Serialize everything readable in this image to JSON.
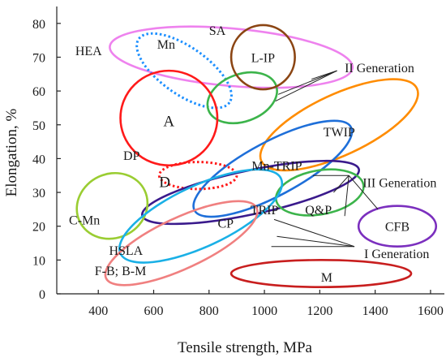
{
  "chart_data": {
    "type": "scatter",
    "title": "",
    "xlabel": "Tensile strength, MPa",
    "ylabel": "Elongation, %",
    "xlim": [
      250,
      1650
    ],
    "ylim": [
      0,
      85
    ],
    "x_ticks": [
      400,
      600,
      800,
      1000,
      1200,
      1400,
      1600
    ],
    "y_ticks": [
      0,
      10,
      20,
      30,
      40,
      50,
      60,
      70,
      80
    ],
    "grid": false,
    "legend": "none",
    "regions": [
      {
        "name": "HEA",
        "label": "HEA",
        "color": "#ee82ee",
        "style": "solid",
        "center": [
          880,
          70
        ],
        "rx": 440,
        "ry": 8.5,
        "rotation": 5,
        "label_pos": [
          365,
          72
        ]
      },
      {
        "name": "Mn",
        "label": "Mn",
        "color": "#1e90ff",
        "style": "dotted",
        "center": [
          710,
          66
        ],
        "rx": 200,
        "ry": 7,
        "rotation": 35,
        "label_pos": [
          645,
          74
        ]
      },
      {
        "name": "SA",
        "label": "SA",
        "color": "#3cb44b",
        "style": "solid",
        "center": [
          920,
          58
        ],
        "rx": 130,
        "ry": 7,
        "rotation": -20,
        "label_pos": [
          830,
          78
        ]
      },
      {
        "name": "L-IP",
        "label": "L-IP",
        "color": "#8b4513",
        "style": "solid",
        "center": [
          995,
          70
        ],
        "rx": 115,
        "ry": 9.5,
        "rotation": 0,
        "label_pos": [
          995,
          70
        ]
      },
      {
        "name": "TWIP",
        "label": "TWIP",
        "color": "#ff8c00",
        "style": "solid",
        "center": [
          1270,
          50
        ],
        "rx": 310,
        "ry": 9,
        "rotation": -25,
        "label_pos": [
          1270,
          48
        ]
      },
      {
        "name": "A",
        "label": "A",
        "color": "#ff1a1a",
        "style": "solid",
        "center": [
          655,
          52
        ],
        "rx": 175,
        "ry": 14,
        "rotation": 0,
        "label_pos": [
          655,
          51
        ]
      },
      {
        "name": "Mn-TRIP",
        "label": "Mn-TRIP",
        "color": "#1e6fd9",
        "style": "solid",
        "center": [
          1030,
          37
        ],
        "rx": 320,
        "ry": 8,
        "rotation": -28,
        "label_pos": [
          1045,
          38
        ]
      },
      {
        "name": "D",
        "label": "D",
        "color": "#ff1a1a",
        "style": "dotted",
        "center": [
          760,
          35
        ],
        "rx": 140,
        "ry": 4,
        "rotation": 0,
        "label_pos": [
          640,
          33
        ]
      },
      {
        "name": "DP",
        "label": "DP",
        "color": "#3a1a8c",
        "style": "solid",
        "center": [
          950,
          30
        ],
        "rx": 400,
        "ry": 6.5,
        "rotation": -12,
        "label_pos": [
          520,
          41
        ]
      },
      {
        "name": "Q&P",
        "label": "Q&P",
        "color": "#3cb44b",
        "style": "solid",
        "center": [
          1200,
          30
        ],
        "rx": 160,
        "ry": 6.5,
        "rotation": -10,
        "label_pos": [
          1195,
          25
        ]
      },
      {
        "name": "CFB",
        "label": "CFB",
        "color": "#7b2fbe",
        "style": "solid",
        "center": [
          1480,
          20
        ],
        "rx": 140,
        "ry": 6,
        "rotation": 0,
        "label_pos": [
          1480,
          20
        ]
      },
      {
        "name": "C-Mn",
        "label": "C-Mn",
        "color": "#9acd32",
        "style": "solid",
        "center": [
          450,
          26
        ],
        "rx": 130,
        "ry": 9.5,
        "rotation": -25,
        "label_pos": [
          350,
          22
        ]
      },
      {
        "name": "CP",
        "label": "CP",
        "color": "#1ab0e6",
        "style": "solid",
        "center": [
          770,
          23
        ],
        "rx": 320,
        "ry": 9,
        "rotation": -25,
        "label_pos": [
          860,
          21
        ]
      },
      {
        "name": "HSLA",
        "label": "HSLA",
        "color": "#f08080",
        "style": "solid",
        "center": [
          700,
          15
        ],
        "rx": 300,
        "ry": 7.5,
        "rotation": -25,
        "label_pos": [
          500,
          13
        ]
      },
      {
        "name": "M",
        "label": "M",
        "color": "#c81e1e",
        "style": "solid",
        "center": [
          1205,
          6
        ],
        "rx": 325,
        "ry": 4,
        "rotation": 0,
        "label_pos": [
          1225,
          5
        ]
      }
    ],
    "extra_labels": [
      {
        "name": "TRIP",
        "text": "TRIP",
        "pos": [
          1000,
          25
        ]
      },
      {
        "name": "F-B; B-M",
        "text": "F-B; B-M",
        "pos": [
          480,
          7
        ]
      }
    ],
    "groups": [
      {
        "name": "II Generation",
        "text": "II Generation",
        "label_pos": [
          1290,
          67
        ],
        "anchor": [
          1262,
          66
        ],
        "targets": [
          [
            1170,
            63.5
          ],
          [
            1040,
            57
          ],
          [
            1050,
            59
          ]
        ],
        "lines": [
          [
            [
              1262,
              66
            ],
            [
              1170,
              63.5
            ]
          ],
          [
            [
              1262,
              66
            ],
            [
              1040,
              57
            ]
          ],
          [
            [
              1262,
              66
            ],
            [
              1050,
              59
            ]
          ]
        ]
      },
      {
        "name": "III Generation",
        "text": "III Generation",
        "label_pos": [
          1355,
          33
        ],
        "anchor": [
          1305,
          35
        ],
        "targets": [
          [
            1175,
            35
          ],
          [
            1250,
            30
          ],
          [
            1290,
            23
          ],
          [
            1410,
            25
          ]
        ],
        "lines": [
          [
            [
              1175,
              35
            ],
            [
              1305,
              35
            ]
          ],
          [
            [
              1305,
              35
            ],
            [
              1250,
              30
            ]
          ],
          [
            [
              1305,
              35
            ],
            [
              1290,
              23
            ]
          ],
          [
            [
              1305,
              35
            ],
            [
              1410,
              25
            ]
          ]
        ]
      },
      {
        "name": "I Generation",
        "text": "I Generation",
        "label_pos": [
          1360,
          12
        ],
        "anchor": [
          1325,
          14
        ],
        "targets": [
          [
            1025,
            14
          ],
          [
            1045,
            17
          ],
          [
            1035,
            22
          ]
        ],
        "lines": [
          [
            [
              1325,
              14
            ],
            [
              1025,
              14
            ]
          ],
          [
            [
              1325,
              14
            ],
            [
              1045,
              17
            ]
          ],
          [
            [
              1325,
              14
            ],
            [
              1035,
              22
            ]
          ]
        ]
      }
    ]
  }
}
